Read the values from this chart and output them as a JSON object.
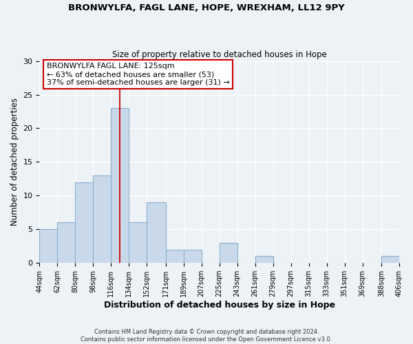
{
  "title1": "BRONWYLFA, FAGL LANE, HOPE, WREXHAM, LL12 9PY",
  "title2": "Size of property relative to detached houses in Hope",
  "xlabel": "Distribution of detached houses by size in Hope",
  "ylabel": "Number of detached properties",
  "bin_edges": [
    44,
    62,
    80,
    98,
    116,
    134,
    152,
    171,
    189,
    207,
    225,
    243,
    261,
    279,
    297,
    315,
    333,
    351,
    369,
    388,
    406
  ],
  "bin_labels": [
    "44sqm",
    "62sqm",
    "80sqm",
    "98sqm",
    "116sqm",
    "134sqm",
    "152sqm",
    "171sqm",
    "189sqm",
    "207sqm",
    "225sqm",
    "243sqm",
    "261sqm",
    "279sqm",
    "297sqm",
    "315sqm",
    "333sqm",
    "351sqm",
    "369sqm",
    "388sqm",
    "406sqm"
  ],
  "bar_heights": [
    5,
    6,
    12,
    13,
    23,
    6,
    9,
    2,
    2,
    0,
    3,
    0,
    1,
    0,
    0,
    0,
    0,
    0,
    0,
    1,
    1
  ],
  "bar_color": "#c9d9ea",
  "bar_edge_color": "#8ab0cc",
  "property_line_x": 125,
  "property_line_color": "#cc0000",
  "annotation_title": "BRONWYLFA FAGL LANE: 125sqm",
  "annotation_line1": "← 63% of detached houses are smaller (53)",
  "annotation_line2": "37% of semi-detached houses are larger (31) →",
  "annotation_box_facecolor": "#ffffff",
  "annotation_box_edgecolor": "#cc0000",
  "ylim": [
    0,
    30
  ],
  "yticks": [
    0,
    5,
    10,
    15,
    20,
    25,
    30
  ],
  "footer1": "Contains HM Land Registry data © Crown copyright and database right 2024.",
  "footer2": "Contains public sector information licensed under the Open Government Licence v3.0.",
  "background_color": "#edf2f7",
  "grid_color": "#ffffff"
}
